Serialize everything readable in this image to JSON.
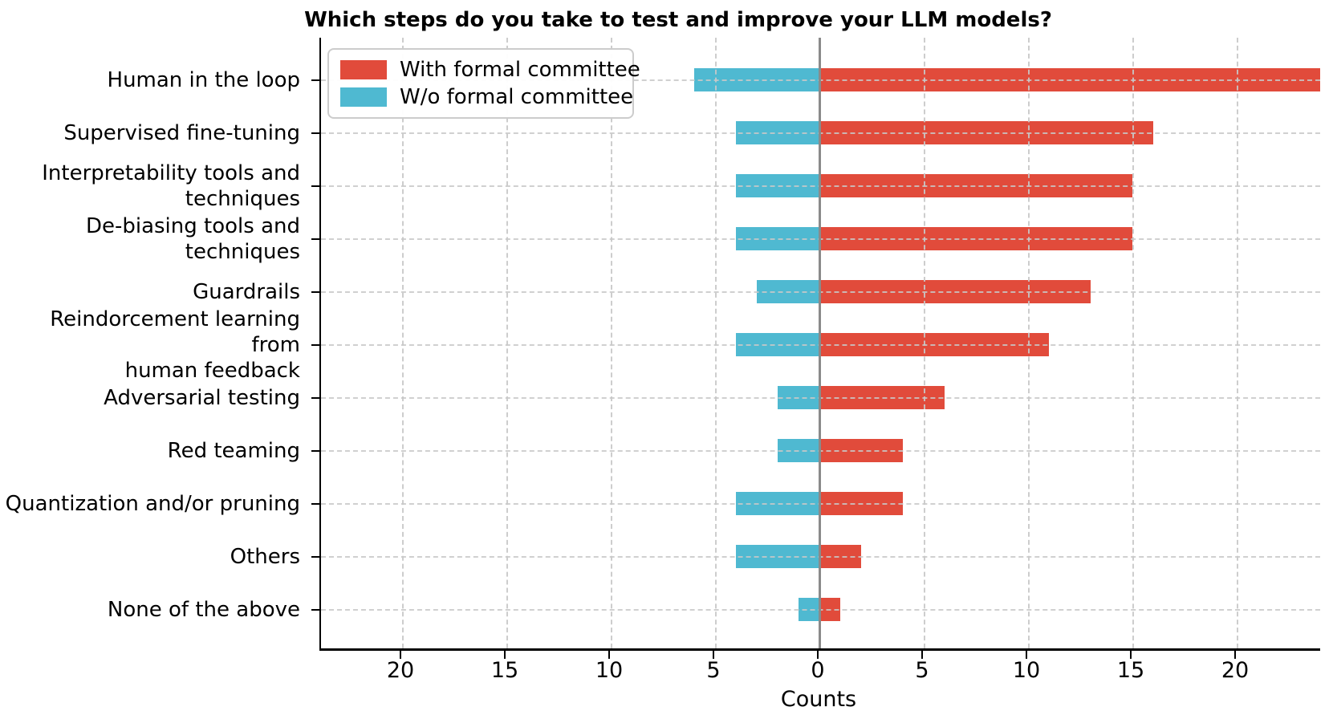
{
  "chart_data": {
    "type": "bar",
    "variant": "horizontal-diverging",
    "title": "Which steps do you take to test and improve your LLM models?",
    "xlabel": "Counts",
    "categories": [
      "Human in the loop",
      "Supervised fine-tuning",
      "Interpretability tools and\ntechniques",
      "De-biasing tools and\ntechniques",
      "Guardrails",
      "Reindorcement learning from\nhuman feedback",
      "Adversarial testing",
      "Red teaming",
      "Quantization and/or pruning",
      "Others",
      "None of the above"
    ],
    "series": [
      {
        "name": "With formal committee",
        "color": "#E14B3B",
        "direction": "right",
        "values": [
          24,
          16,
          15,
          15,
          13,
          11,
          6,
          4,
          4,
          2,
          1
        ]
      },
      {
        "name": "W/o formal committee",
        "color": "#4FB9D1",
        "direction": "left",
        "values": [
          6,
          4,
          4,
          4,
          3,
          4,
          2,
          2,
          4,
          4,
          1
        ]
      }
    ],
    "x_tick_values": [
      -20,
      -15,
      -10,
      -5,
      0,
      5,
      10,
      15,
      20
    ],
    "x_tick_labels": [
      "20",
      "15",
      "10",
      "5",
      "0",
      "5",
      "10",
      "15",
      "20"
    ],
    "xlim": [
      -24,
      24
    ],
    "grid": "dashed-both-axes-above-bars",
    "zero_line_color": "#8a8a8a",
    "legend_position": "upper-left"
  }
}
